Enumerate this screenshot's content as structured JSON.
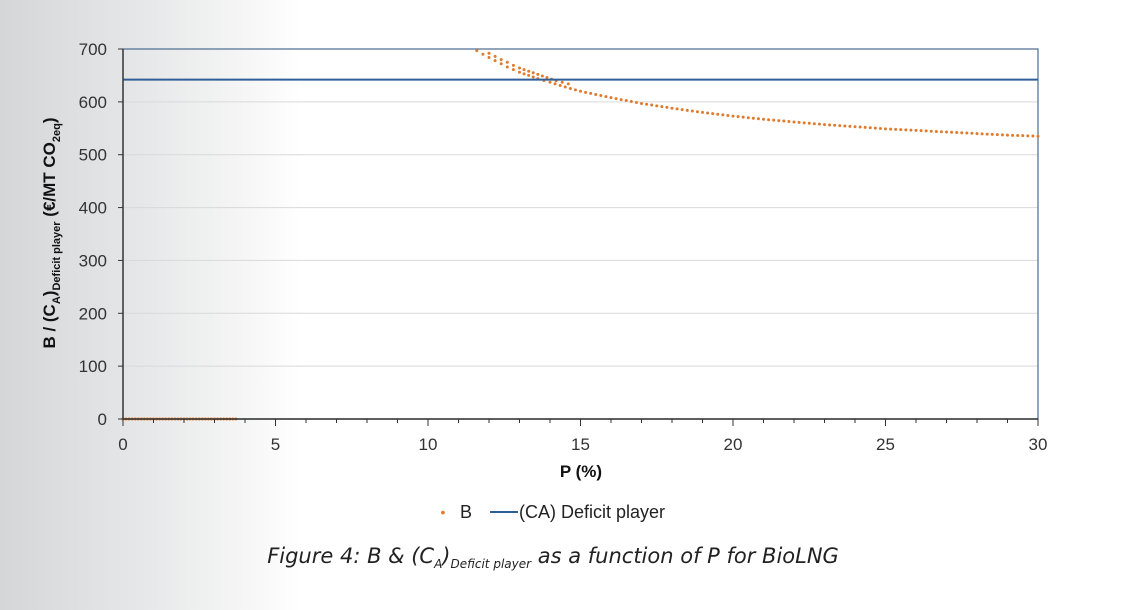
{
  "chart_data": {
    "type": "scatter",
    "xlabel": "P (%)",
    "ylabel_parts": [
      "B / (C",
      "A",
      ")",
      "Deficit player",
      " (€/MT CO",
      "2eq",
      ")"
    ],
    "xlim": [
      0,
      30
    ],
    "ylim": [
      0,
      700
    ],
    "xticks": [
      "0",
      "5",
      "10",
      "15",
      "20",
      "25",
      "30"
    ],
    "yticks": [
      "0",
      "100",
      "200",
      "300",
      "400",
      "500",
      "600",
      "700"
    ],
    "grid": "horizontal",
    "legend_position": "bottom",
    "series": [
      {
        "name": "B",
        "style": "dots",
        "color": "#E07B2E",
        "segments": [
          {
            "x": [
              0.0,
              0.1,
              0.2,
              0.3,
              0.4,
              0.5,
              0.6,
              0.7,
              0.8,
              0.9,
              1.0,
              1.1,
              1.2,
              1.3,
              1.4,
              1.5,
              1.6,
              1.7,
              1.8,
              1.9,
              2.0,
              2.1,
              2.2,
              2.3,
              2.4,
              2.5,
              2.6,
              2.7,
              2.8,
              2.9,
              3.0,
              3.1,
              3.2,
              3.3,
              3.4,
              3.5,
              3.6,
              3.7
            ],
            "y": [
              0,
              0,
              0,
              0,
              0,
              0,
              0,
              0,
              0,
              0,
              0,
              0,
              0,
              0,
              0,
              0,
              0,
              0,
              0,
              0,
              0,
              0,
              0,
              0,
              0,
              0,
              0,
              0,
              0,
              0,
              0,
              0,
              0,
              0,
              0,
              0,
              0,
              0
            ]
          },
          {
            "x": [
              11.6,
              11.8,
              12.0,
              12.2,
              12.4,
              12.6,
              12.8,
              13.0,
              13.3,
              13.6,
              14.0,
              14.5,
              15.0,
              16.0,
              17.0,
              18.0,
              19.0,
              20.0,
              21.0,
              22.0,
              23.0,
              24.0,
              25.0,
              26.0,
              27.0,
              28.0,
              29.0,
              30.0
            ],
            "y": [
              697,
              690,
              684,
              678,
              672,
              666,
              661,
              656,
              650,
              644,
              637,
              628,
              620,
              608,
              597,
              588,
              580,
              573,
              567,
              562,
              557,
              553,
              549,
              546,
              543,
              540,
              537,
              535
            ]
          },
          {
            "x": [
              12.0,
              12.2,
              12.4,
              12.6,
              12.8,
              13.0,
              13.3,
              13.6,
              13.9,
              14.2,
              14.6
            ],
            "y": [
              692,
              686,
              680,
              675,
              669,
              664,
              658,
              652,
              646,
              640,
              634
            ]
          }
        ]
      },
      {
        "name": "(CA) Deficit player",
        "style": "line",
        "color": "#2E5F99",
        "x": [
          0,
          30
        ],
        "y": [
          642,
          642
        ]
      }
    ]
  },
  "legend": {
    "b_marker": "•",
    "b_label": "B",
    "ca_label": "(CA) Deficit player"
  },
  "caption": {
    "prefix": "Figure 4: B & (C",
    "sub_a": "A",
    "mid": ")",
    "sub_deficit": "Deficit player",
    "suffix": " as a function of P for BioLNG"
  }
}
